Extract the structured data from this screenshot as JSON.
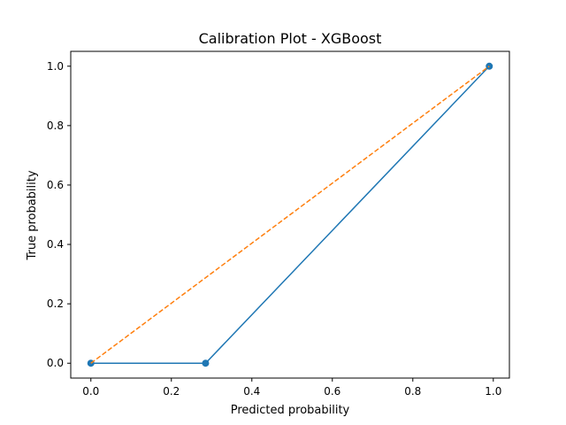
{
  "chart_data": {
    "type": "line",
    "title": "Calibration Plot - XGBoost",
    "xlabel": "Predicted probability",
    "ylabel": "True probability",
    "xlim": [
      -0.05,
      1.04
    ],
    "ylim": [
      -0.05,
      1.05
    ],
    "xticks": [
      "0.0",
      "0.2",
      "0.4",
      "0.6",
      "0.8",
      "1.0"
    ],
    "yticks": [
      "0.0",
      "0.2",
      "0.4",
      "0.6",
      "0.8",
      "1.0"
    ],
    "grid": false,
    "series": [
      {
        "style": "solid-with-markers",
        "color": "#1f77b4",
        "x": [
          0.0,
          0.285,
          0.99
        ],
        "y": [
          0.0,
          0.0,
          1.0
        ]
      },
      {
        "style": "dashed",
        "color": "#ff7f0e",
        "x": [
          0.0,
          0.99
        ],
        "y": [
          0.0,
          1.0
        ]
      }
    ]
  }
}
